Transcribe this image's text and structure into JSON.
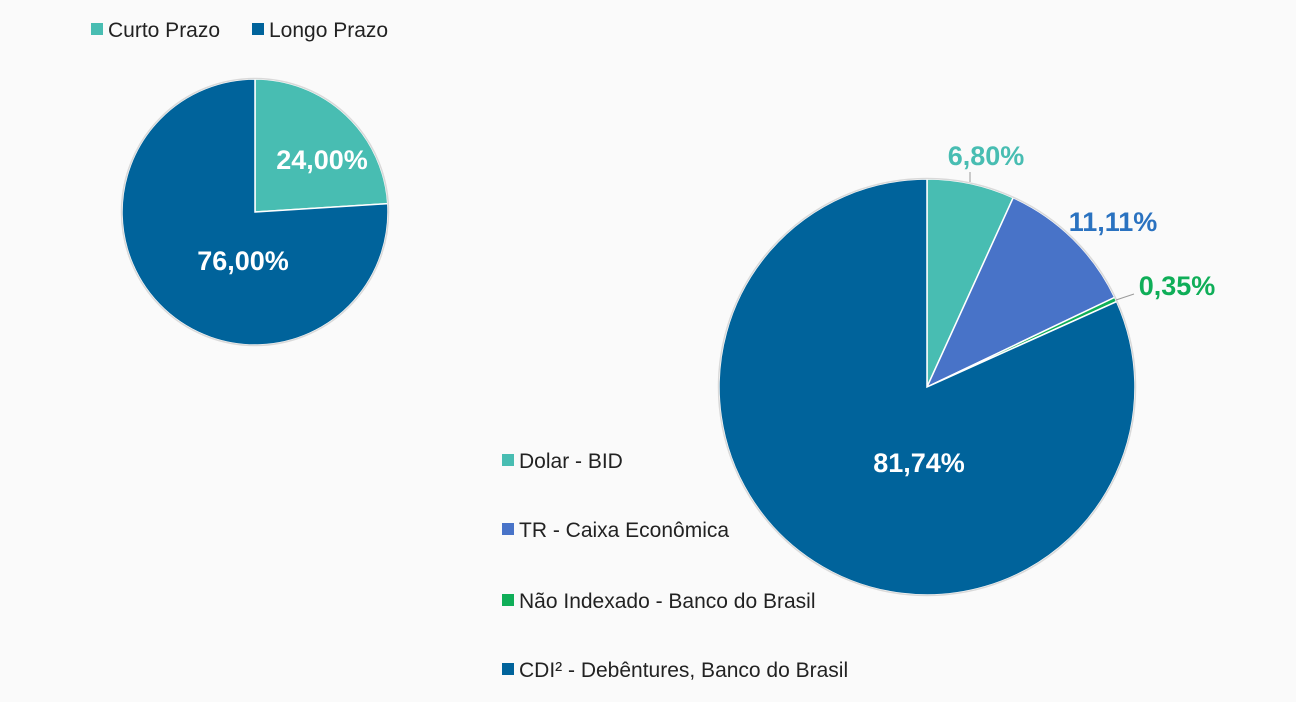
{
  "chart_data": [
    {
      "type": "pie",
      "legend_position": "top-left",
      "slices": [
        {
          "label": "Curto Prazo",
          "value": 24.0,
          "display": "24,00%",
          "color": "#48bdb2"
        },
        {
          "label": "Longo Prazo",
          "value": 76.0,
          "display": "76,00%",
          "color": "#00639b"
        }
      ]
    },
    {
      "type": "pie",
      "legend_position": "left",
      "slices": [
        {
          "label": "Dolar - BID",
          "value": 6.8,
          "display": "6,80%",
          "color": "#48bdb2"
        },
        {
          "label": "TR - Caixa Econômica",
          "value": 11.11,
          "display": "11,11%",
          "color": "#4873c8"
        },
        {
          "label": "Não Indexado - Banco do Brasil",
          "value": 0.35,
          "display": "0,35%",
          "color": "#0fae58"
        },
        {
          "label": "CDI² - Debêntures, Banco do Brasil",
          "value": 81.74,
          "display": "81,74%",
          "color": "#00639b"
        }
      ]
    }
  ]
}
